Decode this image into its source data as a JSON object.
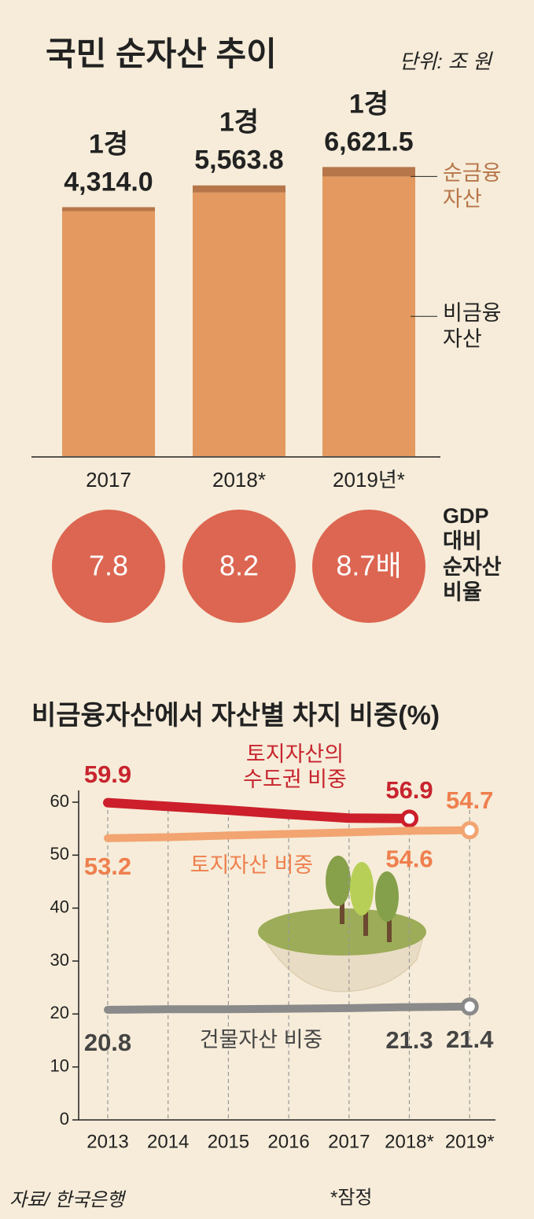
{
  "header": {
    "title": "국민 순자산 추이",
    "unit": "단위: 조 원"
  },
  "chart_data": [
    {
      "type": "bar",
      "stacked": true,
      "categories": [
        "2017",
        "2018*",
        "2019년*"
      ],
      "series": [
        {
          "name": "비금융 자산",
          "color": "#e3995f",
          "values": [
            14084.0,
            15153.8,
            16076.5
          ]
        },
        {
          "name": "순금융 자산",
          "color": "#b7764a",
          "values": [
            230.0,
            410.0,
            545.0
          ]
        }
      ],
      "totals": [
        14314.0,
        15563.8,
        16621.5
      ],
      "total_labels": [
        [
          "1경",
          "4,314.0"
        ],
        [
          "1경",
          "5,563.8"
        ],
        [
          "1경",
          "6,621.5"
        ]
      ],
      "ylim": [
        0,
        17000
      ],
      "gdp_ratio": {
        "label": "GDP 대비 순자산 비율",
        "color": "#dc6651",
        "values": [
          7.8,
          8.2,
          8.7
        ],
        "value_labels": [
          "7.8",
          "8.2",
          "8.7배"
        ]
      }
    },
    {
      "type": "line",
      "title": "비금융자산에서 자산별 차지 비중(%)",
      "categories": [
        "2013",
        "2014",
        "2015",
        "2016",
        "2017",
        "2018*",
        "2019*"
      ],
      "series": [
        {
          "name": "토지자산의 수도권 비중",
          "color": "#cc1f2b",
          "values": [
            59.9,
            59.2,
            58.5,
            57.7,
            57.0,
            56.9,
            null
          ],
          "value_labels": [
            "59.9",
            null,
            null,
            null,
            null,
            "56.9",
            null
          ]
        },
        {
          "name": "토지자산 비중",
          "color": "#f2a471",
          "values": [
            53.2,
            53.4,
            53.7,
            54.0,
            54.3,
            54.6,
            54.7
          ],
          "value_labels": [
            "53.2",
            null,
            null,
            null,
            null,
            "54.6",
            "54.7"
          ]
        },
        {
          "name": "건물자산 비중",
          "color": "#8a8a8a",
          "values": [
            20.8,
            20.9,
            20.9,
            21.0,
            21.1,
            21.3,
            21.4
          ],
          "value_labels": [
            "20.8",
            null,
            null,
            null,
            null,
            "21.3",
            "21.4"
          ]
        }
      ],
      "ylim": [
        0,
        65
      ],
      "yticks": [
        0,
        10,
        20,
        30,
        40,
        50,
        60
      ],
      "grid": true
    }
  ],
  "footer": {
    "source": "자료/ 한국은행",
    "note": "*잠정"
  }
}
